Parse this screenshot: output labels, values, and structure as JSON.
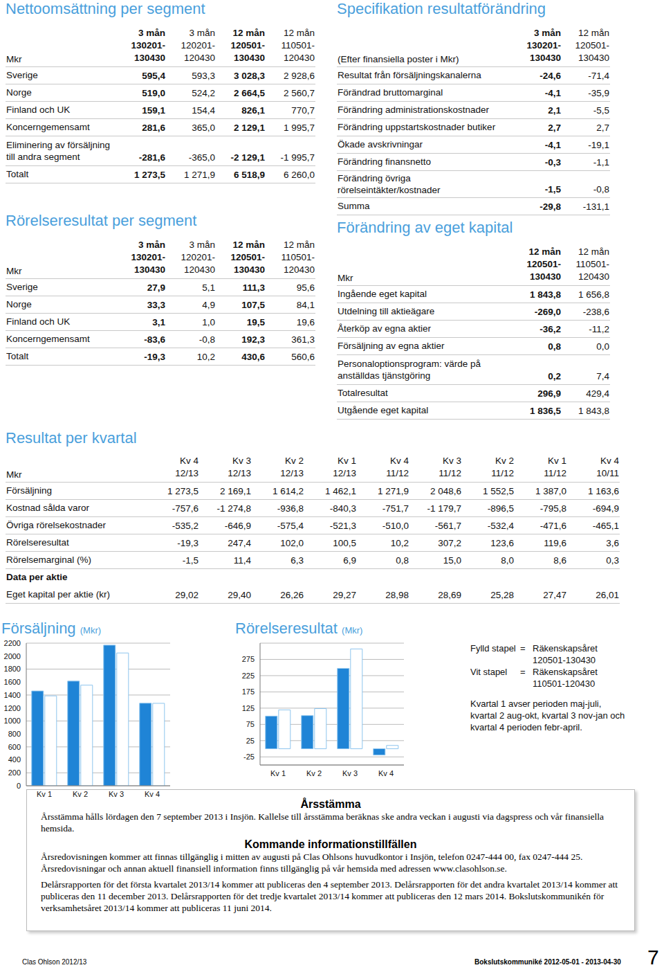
{
  "segment_sales": {
    "title": "Nettoomsättning per segment",
    "header": {
      "label": "Mkr",
      "cols": [
        [
          "3 mån",
          "130201-",
          "130430"
        ],
        [
          "3 mån",
          "120201-",
          "120430"
        ],
        [
          "12 mån",
          "120501-",
          "130430"
        ],
        [
          "12 mån",
          "110501-",
          "120430"
        ]
      ]
    },
    "rows": [
      {
        "label": "Sverige",
        "values": [
          "595,4",
          "593,3",
          "3 028,3",
          "2 928,6"
        ]
      },
      {
        "label": "Norge",
        "values": [
          "519,0",
          "524,2",
          "2 664,5",
          "2 560,7"
        ]
      },
      {
        "label": "Finland och UK",
        "values": [
          "159,1",
          "154,4",
          "826,1",
          "770,7"
        ]
      },
      {
        "label": "Koncerngemensamt",
        "values": [
          "281,6",
          "365,0",
          "2 129,1",
          "1 995,7"
        ]
      },
      {
        "label": "Eliminering av försäljning\ntill andra segment",
        "values": [
          "-281,6",
          "-365,0",
          "-2 129,1",
          "-1 995,7"
        ]
      },
      {
        "label": "Totalt",
        "values": [
          "1 273,5",
          "1 271,9",
          "6 518,9",
          "6 260,0"
        ]
      }
    ]
  },
  "segment_result": {
    "title": "Rörelseresultat per segment",
    "header": {
      "label": "Mkr",
      "cols": [
        [
          "3 mån",
          "130201-",
          "130430"
        ],
        [
          "3 mån",
          "120201-",
          "120430"
        ],
        [
          "12 mån",
          "120501-",
          "130430"
        ],
        [
          "12 mån",
          "110501-",
          "120430"
        ]
      ]
    },
    "rows": [
      {
        "label": "Sverige",
        "values": [
          "27,9",
          "5,1",
          "111,3",
          "95,6"
        ]
      },
      {
        "label": "Norge",
        "values": [
          "33,3",
          "4,9",
          "107,5",
          "84,1"
        ]
      },
      {
        "label": "Finland och UK",
        "values": [
          "3,1",
          "1,0",
          "19,5",
          "19,6"
        ]
      },
      {
        "label": "Koncerngemensamt",
        "values": [
          "-83,6",
          "-0,8",
          "192,3",
          "361,3"
        ]
      },
      {
        "label": "Totalt",
        "values": [
          "-19,3",
          "10,2",
          "430,6",
          "560,6"
        ]
      }
    ]
  },
  "result_change": {
    "title": "Specifikation resultatförändring",
    "header": {
      "label": "(Efter finansiella poster i Mkr)",
      "cols": [
        [
          "3 mån",
          "130201-",
          "130430"
        ],
        [
          "12 mån",
          "120501-",
          "130430"
        ]
      ]
    },
    "rows": [
      {
        "label": "Resultat från försäljningskanalerna",
        "values": [
          "-24,6",
          "-71,4"
        ]
      },
      {
        "label": "Förändrad bruttomarginal",
        "values": [
          "-4,1",
          "-35,9"
        ]
      },
      {
        "label": "Förändring administrationskostnader",
        "values": [
          "2,1",
          "-5,5"
        ]
      },
      {
        "label": "Förändring uppstartskostnader butiker",
        "values": [
          "2,7",
          "2,7"
        ]
      },
      {
        "label": "Ökade avskrivningar",
        "values": [
          "-4,1",
          "-19,1"
        ]
      },
      {
        "label": "Förändring finansnetto",
        "values": [
          "-0,3",
          "-1,1"
        ]
      },
      {
        "label": "Förändring övriga rörelseintäkter/kostnader",
        "values": [
          "-1,5",
          "-0,8"
        ]
      },
      {
        "label": "Summa",
        "values": [
          "-29,8",
          "-131,1"
        ]
      }
    ]
  },
  "equity_change": {
    "title": "Förändring av eget kapital",
    "header": {
      "label": "Mkr",
      "cols": [
        [
          "12 mån",
          "120501-",
          "130430"
        ],
        [
          "12 mån",
          "110501-",
          "120430"
        ]
      ]
    },
    "rows": [
      {
        "label": "Ingående eget kapital",
        "values": [
          "1 843,8",
          "1 656,8"
        ]
      },
      {
        "label": "Utdelning till aktieägare",
        "values": [
          "-269,0",
          "-238,6"
        ]
      },
      {
        "label": "Återköp av egna aktier",
        "values": [
          "-36,2",
          "-11,2"
        ]
      },
      {
        "label": "Försäljning av egna aktier",
        "values": [
          "0,8",
          "0,0"
        ]
      },
      {
        "label": "Personaloptionsprogram: värde på\nanställdas tjänstgöring",
        "values": [
          "0,2",
          "7,4"
        ]
      },
      {
        "label": "Totalresultat",
        "values": [
          "296,9",
          "429,4"
        ]
      },
      {
        "label": "Utgående eget kapital",
        "values": [
          "1 836,5",
          "1 843,8"
        ]
      }
    ]
  },
  "quarterly": {
    "title": "Resultat per kvartal",
    "header": {
      "label": "Mkr",
      "cols": [
        [
          "Kv 4",
          "12/13"
        ],
        [
          "Kv 3",
          "12/13"
        ],
        [
          "Kv 2",
          "12/13"
        ],
        [
          "Kv 1",
          "12/13"
        ],
        [
          "Kv 4",
          "11/12"
        ],
        [
          "Kv 3",
          "11/12"
        ],
        [
          "Kv 2",
          "11/12"
        ],
        [
          "Kv 1",
          "11/12"
        ],
        [
          "Kv 4",
          "10/11"
        ]
      ]
    },
    "rows": [
      {
        "label": "Försäljning",
        "values": [
          "1 273,5",
          "2 169,1",
          "1 614,2",
          "1 462,1",
          "1 271,9",
          "2 048,6",
          "1 552,5",
          "1 387,0",
          "1 163,6"
        ]
      },
      {
        "label": "Kostnad sålda varor",
        "values": [
          "-757,6",
          "-1 274,8",
          "-936,8",
          "-840,3",
          "-751,7",
          "-1 179,7",
          "-896,5",
          "-795,8",
          "-694,9"
        ]
      },
      {
        "label": "Övriga rörelsekostnader",
        "values": [
          "-535,2",
          "-646,9",
          "-575,4",
          "-521,3",
          "-510,0",
          "-561,7",
          "-532,4",
          "-471,6",
          "-465,1"
        ]
      },
      {
        "label": "Rörelseresultat",
        "values": [
          "-19,3",
          "247,4",
          "102,0",
          "100,5",
          "10,2",
          "307,2",
          "123,6",
          "119,6",
          "3,6"
        ]
      },
      {
        "label": "Rörelsemarginal (%)",
        "values": [
          "-1,5",
          "11,4",
          "6,3",
          "6,9",
          "0,8",
          "15,0",
          "8,0",
          "8,6",
          "0,3"
        ]
      },
      {
        "label": "Data per aktie",
        "values": []
      },
      {
        "label": "Eget kapital per aktie (kr)",
        "values": [
          "29,02",
          "29,40",
          "26,26",
          "29,27",
          "28,98",
          "28,69",
          "25,28",
          "27,47",
          "26,01"
        ]
      }
    ]
  },
  "chart_data": [
    {
      "type": "bar",
      "title": "Försäljning",
      "subtitle": "(Mkr)",
      "categories": [
        "Kv 1",
        "Kv 2",
        "Kv 3",
        "Kv 4"
      ],
      "series": [
        {
          "color": "#1f84d6",
          "values": [
            1462.1,
            1614.2,
            2169.1,
            1273.5
          ]
        },
        {
          "color": "#ffffff",
          "values": [
            1387.0,
            1552.5,
            2048.6,
            1271.9
          ]
        }
      ],
      "ylim": [
        0,
        2200
      ],
      "yticks": [
        0,
        200,
        400,
        600,
        800,
        1000,
        1200,
        1400,
        1600,
        1800,
        2000,
        2200
      ],
      "grid": true
    },
    {
      "type": "bar",
      "title": "Rörelseresultat",
      "subtitle": "(Mkr)",
      "categories": [
        "Kv 1",
        "Kv 2",
        "Kv 3",
        "Kv 4"
      ],
      "series": [
        {
          "color": "#1f84d6",
          "values": [
            100.5,
            102.0,
            247.4,
            -19.3
          ]
        },
        {
          "color": "#ffffff",
          "values": [
            119.6,
            123.6,
            307.2,
            10.2
          ]
        }
      ],
      "ylim": [
        -50,
        325
      ],
      "yticks": [
        -25,
        25,
        75,
        125,
        175,
        225,
        275
      ],
      "grid": true
    }
  ],
  "chart_legend": {
    "items": [
      {
        "label": "Fylld stapel",
        "sign": "=",
        "lines": [
          "Räkenskapsåret",
          "120501-130430"
        ]
      },
      {
        "label": "Vit stapel",
        "sign": "=",
        "lines": [
          "Räkenskapsåret",
          "110501-120430"
        ]
      }
    ],
    "note": "Kvartal 1 avser perioden maj-juli, kvartal 2 aug-okt, kvartal 3 nov-jan och kvartal 4 perioden febr-april."
  },
  "info_box": {
    "title": "Årsstämma",
    "text": "Årsstämma hålls lördagen den 7 september 2013 i Insjön. Kallelse till årsstämma beräknas ske andra veckan i augusti via dagspress och vår finansiella hemsida.",
    "subtitle": "Kommande informationstillfällen",
    "paragraphs": [
      "Årsredovisningen kommer att finnas tillgänglig i mitten av augusti på Clas Ohlsons huvudkontor i Insjön, telefon 0247-444 00, fax 0247-444 25. Årsredovisningar och annan aktuell finansiell information finns tillgänglig på vår hemsida med adressen www.clasohlson.se.",
      "Delårsrapporten för det första kvartalet 2013/14 kommer att publiceras den 4 september 2013. Delårsrapporten för det andra kvartalet 2013/14 kommer att publiceras den 11 december 2013. Delårsrapporten för det tredje kvartalet 2013/14 kommer att publiceras den 12 mars 2014. Bokslutskommunikén för verksamhetsåret 2013/14 kommer att publiceras 11 juni 2014."
    ]
  },
  "footer": {
    "left": "Clas Ohlson 2012/13",
    "right": "Bokslutskommuniké 2012-05-01 - 2013-04-30",
    "page": "7"
  }
}
